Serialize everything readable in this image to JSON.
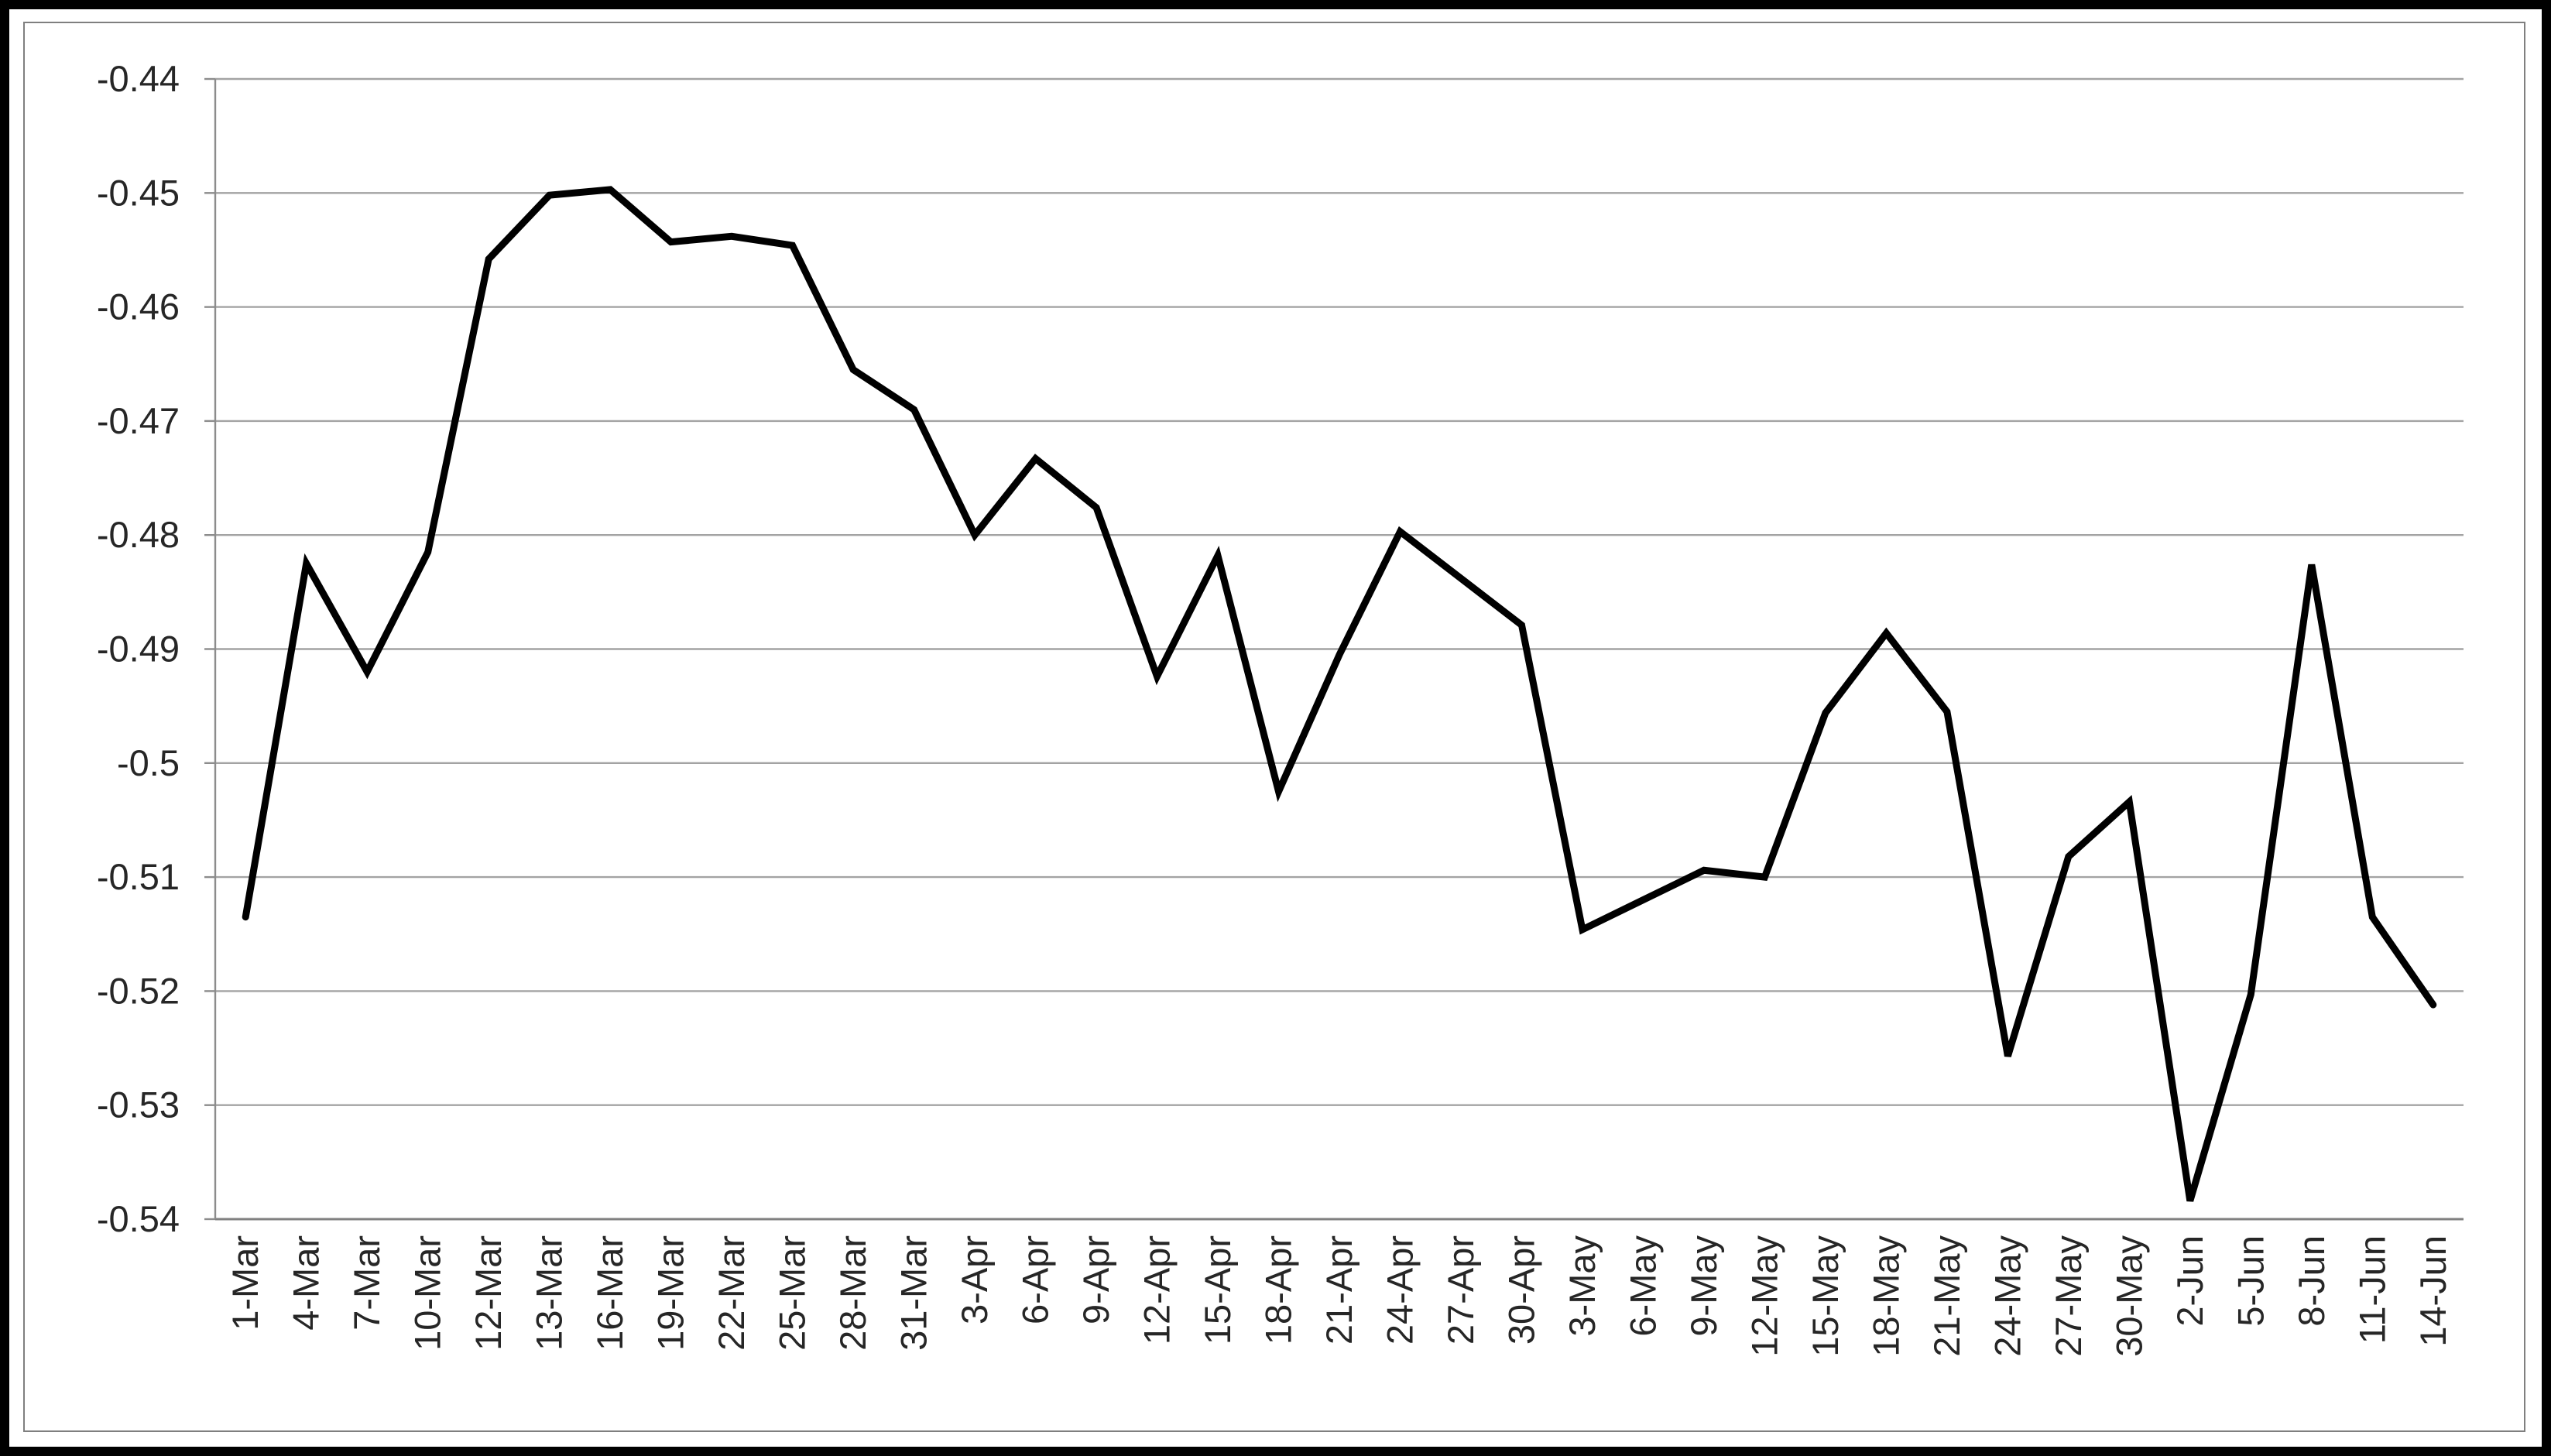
{
  "chart_data": {
    "type": "line",
    "title": "",
    "xlabel": "",
    "ylabel": "",
    "categories": [
      "1-Mar",
      "4-Mar",
      "7-Mar",
      "10-Mar",
      "12-Mar",
      "13-Mar",
      "16-Mar",
      "19-Mar",
      "22-Mar",
      "25-Mar",
      "28-Mar",
      "31-Mar",
      "3-Apr",
      "6-Apr",
      "9-Apr",
      "12-Apr",
      "15-Apr",
      "18-Apr",
      "21-Apr",
      "24-Apr",
      "27-Apr",
      "30-Apr",
      "3-May",
      "6-May",
      "9-May",
      "12-May",
      "15-May",
      "18-May",
      "21-May",
      "24-May",
      "27-May",
      "30-May",
      "2-Jun",
      "5-Jun",
      "8-Jun",
      "11-Jun",
      "14-Jun"
    ],
    "values": [
      -0.5135,
      -0.4825,
      -0.492,
      -0.4815,
      -0.4558,
      -0.4502,
      -0.4497,
      -0.4543,
      -0.4538,
      -0.4546,
      -0.4655,
      -0.469,
      -0.48,
      -0.4733,
      -0.4776,
      -0.4924,
      -0.4818,
      -0.5025,
      -0.4905,
      -0.4797,
      -0.4838,
      -0.4879,
      -0.5146,
      -0.512,
      -0.5094,
      -0.51,
      -0.4956,
      -0.4886,
      -0.4955,
      -0.5257,
      -0.5082,
      -0.5034,
      -0.5384,
      -0.5203,
      -0.4826,
      -0.5135,
      -0.5212
    ],
    "y_tick_labels": [
      "-0.44",
      "-0.45",
      "-0.46",
      "-0.47",
      "-0.48",
      "-0.49",
      "-0.5",
      "-0.51",
      "-0.52",
      "-0.53",
      "-0.54"
    ],
    "y_tick_values": [
      -0.44,
      -0.45,
      -0.46,
      -0.47,
      -0.48,
      -0.49,
      -0.5,
      -0.51,
      -0.52,
      -0.53,
      -0.54
    ],
    "ylim": [
      -0.54,
      -0.44
    ],
    "grid": "horizontal",
    "legend": "none",
    "colors": {
      "series_line": "#000000",
      "gridline": "#a3a3a3",
      "axis_line": "#8c8c8c",
      "bottom_axis_line": "#808080",
      "tick_text": "#262626",
      "chart_border": "#7f7f7f",
      "picture_frame": "#000000",
      "background": "#ffffff"
    }
  }
}
